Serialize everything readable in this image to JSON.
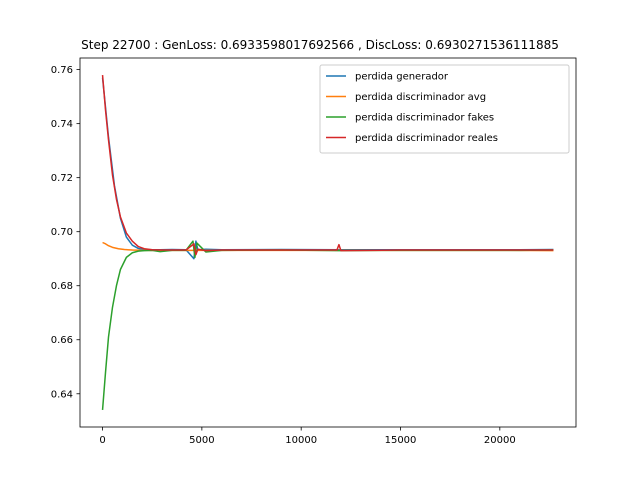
{
  "chart_data": {
    "type": "line",
    "title": "Step 22700 : GenLoss: 0.6933598017692566 , DiscLoss: 0.6930271536111885",
    "xlabel": "",
    "ylabel": "",
    "xlim": [
      -1135,
      23835
    ],
    "ylim": [
      0.6277,
      0.7643
    ],
    "x_ticks": [
      0,
      5000,
      10000,
      15000,
      20000
    ],
    "y_ticks": [
      0.64,
      0.66,
      0.68,
      0.7,
      0.72,
      0.74,
      0.76
    ],
    "y_tick_labels": [
      "0.64",
      "0.66",
      "0.68",
      "0.70",
      "0.72",
      "0.74",
      "0.76"
    ],
    "grid": false,
    "legend_position": "upper-right",
    "series": [
      {
        "name": "perdida generador",
        "color": "#1f77b4",
        "x": [
          0,
          300,
          600,
          900,
          1200,
          1500,
          1800,
          2100,
          2500,
          2900,
          3500,
          4200,
          4600,
          4700,
          4800,
          5200,
          6000,
          9000,
          12000,
          15000,
          18000,
          21000,
          22700
        ],
        "y": [
          0.757,
          0.735,
          0.717,
          0.705,
          0.698,
          0.695,
          0.6938,
          0.6934,
          0.6933,
          0.6933,
          0.6934,
          0.6933,
          0.69,
          0.6965,
          0.6933,
          0.6935,
          0.6933,
          0.6934,
          0.6933,
          0.6933,
          0.6933,
          0.6933,
          0.6934
        ]
      },
      {
        "name": "perdida discriminador avg",
        "color": "#ff7f0e",
        "x": [
          0,
          150,
          300,
          500,
          800,
          1100,
          1500,
          2000,
          3000,
          5000,
          10000,
          15000,
          20000,
          22700
        ],
        "y": [
          0.696,
          0.6955,
          0.6948,
          0.6942,
          0.6937,
          0.6934,
          0.6932,
          0.6931,
          0.6931,
          0.6931,
          0.6931,
          0.6931,
          0.6931,
          0.693
        ]
      },
      {
        "name": "perdida discriminador fakes",
        "color": "#2ca02c",
        "x": [
          0,
          150,
          300,
          500,
          700,
          900,
          1200,
          1500,
          1800,
          2100,
          2500,
          2900,
          3500,
          4200,
          4550,
          4650,
          4750,
          5200,
          6000,
          9000,
          12000,
          15000,
          18000,
          21000,
          22700
        ],
        "y": [
          0.634,
          0.648,
          0.661,
          0.672,
          0.68,
          0.686,
          0.6905,
          0.6922,
          0.6928,
          0.693,
          0.6931,
          0.6926,
          0.6931,
          0.6931,
          0.6965,
          0.6905,
          0.6958,
          0.6925,
          0.6931,
          0.6932,
          0.693,
          0.6931,
          0.6931,
          0.6931,
          0.6932
        ]
      },
      {
        "name": "perdida discriminador reales",
        "color": "#d62728",
        "x": [
          0,
          150,
          300,
          500,
          700,
          900,
          1200,
          1500,
          1800,
          2100,
          2500,
          3000,
          4200,
          4600,
          4700,
          4800,
          5200,
          6000,
          9000,
          11800,
          11900,
          12000,
          15000,
          18000,
          21000,
          22700
        ],
        "y": [
          0.758,
          0.745,
          0.734,
          0.721,
          0.712,
          0.7055,
          0.6995,
          0.6965,
          0.6945,
          0.6937,
          0.6933,
          0.6932,
          0.6932,
          0.6955,
          0.6915,
          0.6935,
          0.693,
          0.6932,
          0.6932,
          0.6932,
          0.6952,
          0.693,
          0.6932,
          0.6932,
          0.6932,
          0.6932
        ]
      }
    ]
  }
}
